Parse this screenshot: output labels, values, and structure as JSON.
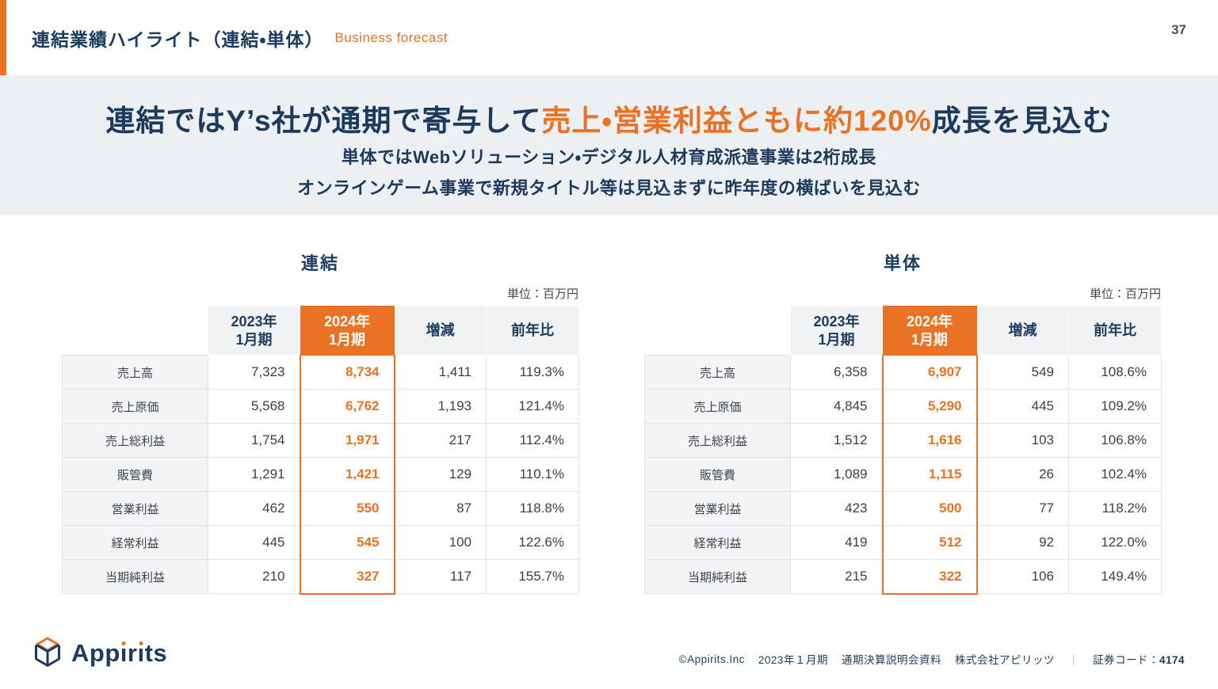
{
  "colors": {
    "accent_orange": "#e97224",
    "navy": "#1b3c5f",
    "banner_bg": "#edf0f2"
  },
  "header": {
    "title": "連結業績ハイライト（連結・単体）",
    "subtitle_en": "Business forecast",
    "page_number": "37"
  },
  "banner": {
    "headline_pre": "連結ではY’s社が通期で寄与して",
    "headline_highlight": "売上・営業利益ともに約120%",
    "headline_post": "成長を見込む",
    "subline1": "単体ではWebソリューション・デジタル人材育成派遣事業は2桁成長",
    "subline2": "オンラインゲーム事業で新規タイトル等は見込まずに昨年度の横ばいを見込む"
  },
  "tables": [
    {
      "title": "連結",
      "unit": "単位：百万円",
      "columns": [
        "2023年\n1月期",
        "2024年\n1月期",
        "増減",
        "前年比"
      ],
      "rows": [
        {
          "label": "売上高",
          "values": [
            "7,323",
            "8,734",
            "1,411",
            "119.3%"
          ]
        },
        {
          "label": "売上原価",
          "values": [
            "5,568",
            "6,762",
            "1,193",
            "121.4%"
          ]
        },
        {
          "label": "売上総利益",
          "values": [
            "1,754",
            "1,971",
            "217",
            "112.4%"
          ]
        },
        {
          "label": "販管費",
          "values": [
            "1,291",
            "1,421",
            "129",
            "110.1%"
          ]
        },
        {
          "label": "営業利益",
          "values": [
            "462",
            "550",
            "87",
            "118.8%"
          ]
        },
        {
          "label": "経常利益",
          "values": [
            "445",
            "545",
            "100",
            "122.6%"
          ]
        },
        {
          "label": "当期純利益",
          "values": [
            "210",
            "327",
            "117",
            "155.7%"
          ]
        }
      ]
    },
    {
      "title": "単体",
      "unit": "単位：百万円",
      "columns": [
        "2023年\n1月期",
        "2024年\n1月期",
        "増減",
        "前年比"
      ],
      "rows": [
        {
          "label": "売上高",
          "values": [
            "6,358",
            "6,907",
            "549",
            "108.6%"
          ]
        },
        {
          "label": "売上原価",
          "values": [
            "4,845",
            "5,290",
            "445",
            "109.2%"
          ]
        },
        {
          "label": "売上総利益",
          "values": [
            "1,512",
            "1,616",
            "103",
            "106.8%"
          ]
        },
        {
          "label": "販管費",
          "values": [
            "1,089",
            "1,115",
            "26",
            "102.4%"
          ]
        },
        {
          "label": "営業利益",
          "values": [
            "423",
            "500",
            "77",
            "118.2%"
          ]
        },
        {
          "label": "経常利益",
          "values": [
            "419",
            "512",
            "92",
            "122.0%"
          ]
        },
        {
          "label": "当期純利益",
          "values": [
            "215",
            "322",
            "106",
            "149.4%"
          ]
        }
      ]
    }
  ],
  "footer": {
    "logo_text": "Appirits",
    "copyright": "©Appirits.Inc",
    "period": "2023年１月期",
    "document": "通期決算説明会資料",
    "company": "株式会社アピリッツ",
    "separator": "｜",
    "code_label": "証券コード：",
    "code_value": "4174"
  }
}
